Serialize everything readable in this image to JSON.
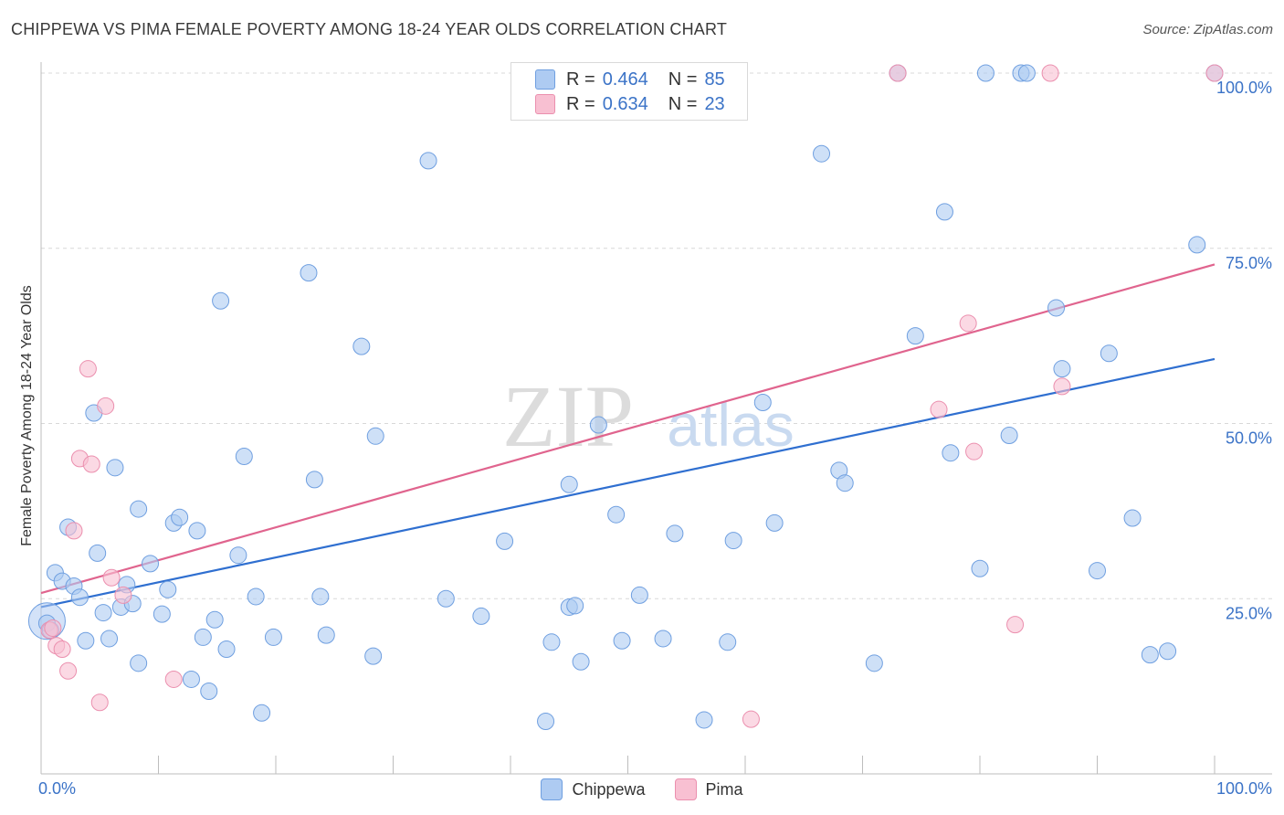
{
  "header": {
    "title": "CHIPPEWA VS PIMA FEMALE POVERTY AMONG 18-24 YEAR OLDS CORRELATION CHART",
    "source": "Source: ZipAtlas.com"
  },
  "watermark": {
    "zip": "ZIP",
    "atlas": "atlas"
  },
  "legend_top": [
    {
      "r_label": "R =",
      "r_value": "0.464",
      "n_label": "N =",
      "n_value": "85"
    },
    {
      "r_label": "R =",
      "r_value": "0.634",
      "n_label": "N =",
      "n_value": "23"
    }
  ],
  "colors": {
    "chippewa_fill": "#aecbf2",
    "chippewa_stroke": "#6f9fe0",
    "chippewa_line": "#2f6fd0",
    "pima_fill": "#f8c0d2",
    "pima_stroke": "#eb8fae",
    "pima_line": "#e0648e",
    "tick_label": "#3b73c7",
    "grid": "#d8d8d8"
  },
  "chart_data": {
    "type": "scatter",
    "title": "CHIPPEWA VS PIMA FEMALE POVERTY AMONG 18-24 YEAR OLDS CORRELATION CHART",
    "xlabel": "",
    "ylabel": "Female Poverty Among 18-24 Year Olds",
    "xlim": [
      0,
      100
    ],
    "ylim": [
      0,
      102
    ],
    "x_tick_labels": [
      "0.0%",
      "100.0%"
    ],
    "y_ticks": [
      25,
      50,
      75,
      100
    ],
    "y_tick_labels": [
      "25.0%",
      "50.0%",
      "75.0%",
      "100.0%"
    ],
    "grid": true,
    "legend_position": "top-center and bottom",
    "series": [
      {
        "name": "Chippewa",
        "r": 0.464,
        "n": 85,
        "trend": {
          "x": [
            0,
            100
          ],
          "y": [
            23.8,
            59.2
          ]
        },
        "points": [
          [
            0.5,
            21.5
          ],
          [
            0.8,
            20.5
          ],
          [
            1.2,
            28.7
          ],
          [
            1.8,
            27.5
          ],
          [
            2.3,
            35.2
          ],
          [
            2.8,
            26.8
          ],
          [
            3.3,
            25.2
          ],
          [
            3.8,
            19.0
          ],
          [
            4.8,
            31.5
          ],
          [
            5.3,
            23.0
          ],
          [
            5.8,
            19.3
          ],
          [
            6.3,
            43.7
          ],
          [
            6.8,
            23.8
          ],
          [
            4.5,
            51.5
          ],
          [
            7.3,
            27.0
          ],
          [
            7.8,
            24.3
          ],
          [
            8.3,
            15.8
          ],
          [
            8.3,
            37.8
          ],
          [
            9.3,
            30.0
          ],
          [
            10.3,
            22.8
          ],
          [
            10.8,
            26.3
          ],
          [
            11.3,
            35.8
          ],
          [
            11.8,
            36.6
          ],
          [
            12.8,
            13.5
          ],
          [
            13.3,
            34.7
          ],
          [
            13.8,
            19.5
          ],
          [
            14.3,
            11.8
          ],
          [
            14.8,
            22.0
          ],
          [
            15.3,
            67.5
          ],
          [
            15.8,
            17.8
          ],
          [
            16.8,
            31.2
          ],
          [
            17.3,
            45.3
          ],
          [
            18.3,
            25.3
          ],
          [
            18.8,
            8.7
          ],
          [
            19.8,
            19.5
          ],
          [
            22.8,
            71.5
          ],
          [
            23.3,
            42.0
          ],
          [
            23.8,
            25.3
          ],
          [
            24.3,
            19.8
          ],
          [
            27.3,
            61.0
          ],
          [
            28.3,
            16.8
          ],
          [
            28.5,
            48.2
          ],
          [
            33.0,
            87.5
          ],
          [
            34.5,
            25.0
          ],
          [
            37.5,
            22.5
          ],
          [
            39.5,
            33.2
          ],
          [
            43.0,
            7.5
          ],
          [
            43.5,
            18.8
          ],
          [
            45.0,
            41.3
          ],
          [
            45.0,
            23.8
          ],
          [
            45.5,
            24.0
          ],
          [
            46.0,
            16.0
          ],
          [
            47.5,
            49.8
          ],
          [
            49.0,
            37.0
          ],
          [
            49.5,
            19.0
          ],
          [
            51.0,
            25.5
          ],
          [
            53.0,
            19.3
          ],
          [
            54.0,
            34.3
          ],
          [
            56.5,
            7.7
          ],
          [
            58.5,
            18.8
          ],
          [
            59.0,
            33.3
          ],
          [
            61.5,
            53.0
          ],
          [
            62.5,
            35.8
          ],
          [
            66.5,
            88.5
          ],
          [
            68.0,
            43.3
          ],
          [
            68.5,
            41.5
          ],
          [
            71.0,
            15.8
          ],
          [
            73.0,
            100.0
          ],
          [
            74.5,
            62.5
          ],
          [
            77.0,
            80.2
          ],
          [
            77.5,
            45.8
          ],
          [
            80.0,
            29.3
          ],
          [
            80.5,
            100.0
          ],
          [
            82.5,
            48.3
          ],
          [
            83.5,
            100.0
          ],
          [
            84.0,
            100.0
          ],
          [
            86.5,
            66.5
          ],
          [
            87.0,
            57.8
          ],
          [
            90.0,
            29.0
          ],
          [
            91.0,
            60.0
          ],
          [
            93.0,
            36.5
          ],
          [
            94.5,
            17.0
          ],
          [
            96.0,
            17.5
          ],
          [
            98.5,
            75.5
          ],
          [
            100.0,
            100.0
          ]
        ]
      },
      {
        "name": "Pima",
        "r": 0.634,
        "n": 23,
        "trend": {
          "x": [
            0,
            100
          ],
          "y": [
            25.8,
            72.7
          ]
        },
        "points": [
          [
            0.7,
            20.5
          ],
          [
            1.0,
            20.8
          ],
          [
            1.3,
            18.3
          ],
          [
            1.8,
            17.8
          ],
          [
            2.3,
            14.7
          ],
          [
            2.8,
            34.7
          ],
          [
            3.3,
            45.0
          ],
          [
            4.0,
            57.8
          ],
          [
            4.3,
            44.2
          ],
          [
            5.0,
            10.2
          ],
          [
            5.5,
            52.5
          ],
          [
            6.0,
            28.0
          ],
          [
            7.0,
            25.5
          ],
          [
            11.3,
            13.5
          ],
          [
            60.5,
            7.8
          ],
          [
            73.0,
            100.0
          ],
          [
            76.5,
            52.0
          ],
          [
            79.0,
            64.3
          ],
          [
            79.5,
            46.0
          ],
          [
            83.0,
            21.3
          ],
          [
            86.0,
            100.0
          ],
          [
            87.0,
            55.3
          ],
          [
            100.0,
            100.0
          ]
        ]
      }
    ]
  },
  "legend_bottom": [
    {
      "label": "Chippewa"
    },
    {
      "label": "Pima"
    }
  ]
}
